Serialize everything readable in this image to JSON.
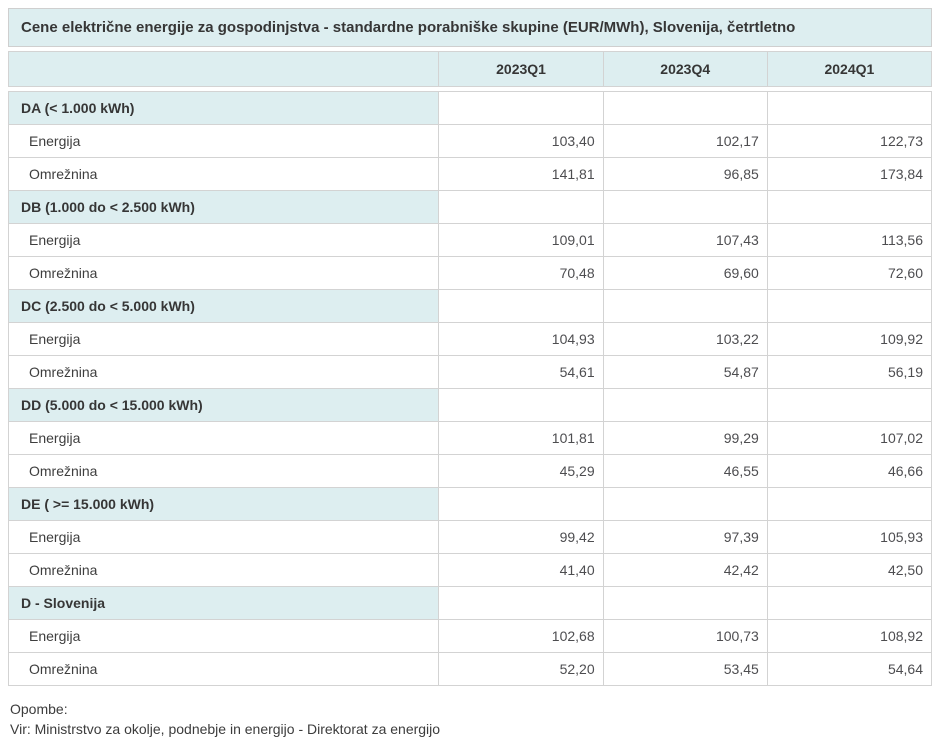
{
  "colors": {
    "band_background": "#ddeef0",
    "border": "#d3d3d3",
    "title_text": "#363636",
    "value_text": "#4d4d50"
  },
  "chart_data": {
    "type": "table",
    "title": "Cene električne energije za gospodinjstva - standardne porabniške skupine (EUR/MWh), Slovenija, četrtletno",
    "unit": "EUR/MWh",
    "columns": [
      "2023Q1",
      "2023Q4",
      "2024Q1"
    ],
    "groups": [
      {
        "label": "DA (< 1.000 kWh)",
        "rows": [
          {
            "label": "Energija",
            "values": [
              "103,40",
              "102,17",
              "122,73"
            ]
          },
          {
            "label": "Omrežnina",
            "values": [
              "141,81",
              "96,85",
              "173,84"
            ]
          }
        ]
      },
      {
        "label": "DB (1.000 do < 2.500 kWh)",
        "rows": [
          {
            "label": "Energija",
            "values": [
              "109,01",
              "107,43",
              "113,56"
            ]
          },
          {
            "label": "Omrežnina",
            "values": [
              "70,48",
              "69,60",
              "72,60"
            ]
          }
        ]
      },
      {
        "label": "DC (2.500 do < 5.000 kWh)",
        "rows": [
          {
            "label": "Energija",
            "values": [
              "104,93",
              "103,22",
              "109,92"
            ]
          },
          {
            "label": "Omrežnina",
            "values": [
              "54,61",
              "54,87",
              "56,19"
            ]
          }
        ]
      },
      {
        "label": "DD (5.000 do < 15.000 kWh)",
        "rows": [
          {
            "label": "Energija",
            "values": [
              "101,81",
              "99,29",
              "107,02"
            ]
          },
          {
            "label": "Omrežnina",
            "values": [
              "45,29",
              "46,55",
              "46,66"
            ]
          }
        ]
      },
      {
        "label": "DE ( >= 15.000 kWh)",
        "rows": [
          {
            "label": "Energija",
            "values": [
              "99,42",
              "97,39",
              "105,93"
            ]
          },
          {
            "label": "Omrežnina",
            "values": [
              "41,40",
              "42,42",
              "42,50"
            ]
          }
        ]
      },
      {
        "label": "D - Slovenija",
        "rows": [
          {
            "label": "Energija",
            "values": [
              "102,68",
              "100,73",
              "108,92"
            ]
          },
          {
            "label": "Omrežnina",
            "values": [
              "52,20",
              "53,45",
              "54,64"
            ]
          }
        ]
      }
    ]
  },
  "footer": {
    "notes_label": "Opombe:",
    "source": "Vir: Ministrstvo za okolje, podnebje in energijo - Direktorat za energijo"
  }
}
